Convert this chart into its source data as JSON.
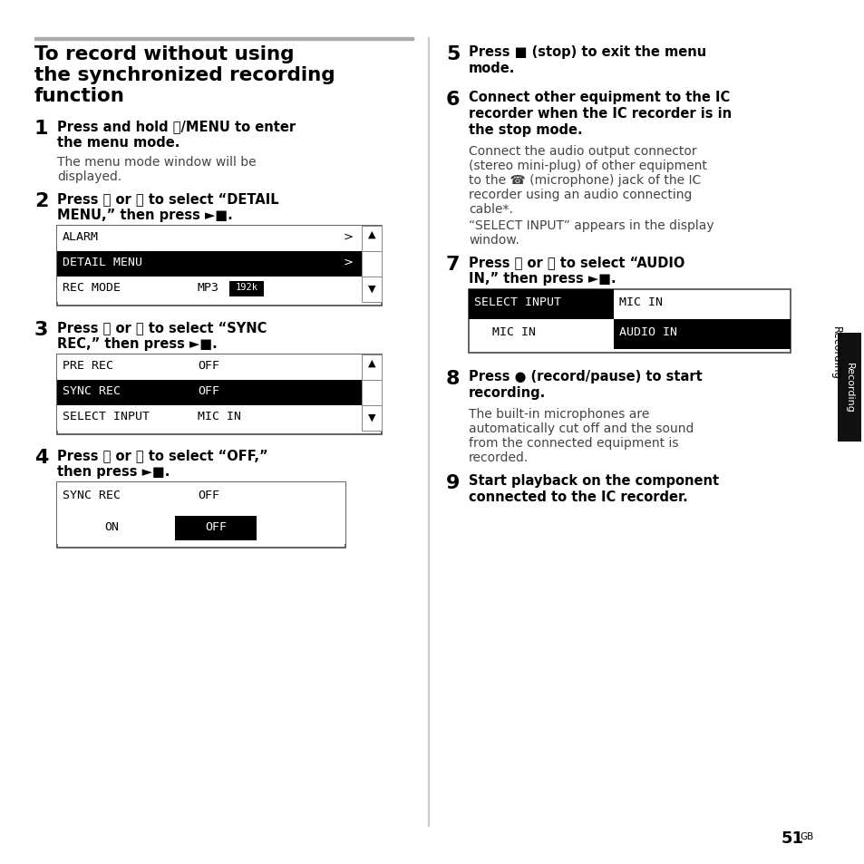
{
  "bg_color": "#ffffff",
  "title_line1": "To record without using",
  "title_line2": "the synchronized recording",
  "title_line3": "function",
  "side_label": "Recording",
  "page_num": "51",
  "page_suffix": "GB",
  "body_color": "#444444",
  "bold_color": "#000000",
  "mono_font": "DejaVu Sans Mono",
  "sans_font": "DejaVu Sans"
}
